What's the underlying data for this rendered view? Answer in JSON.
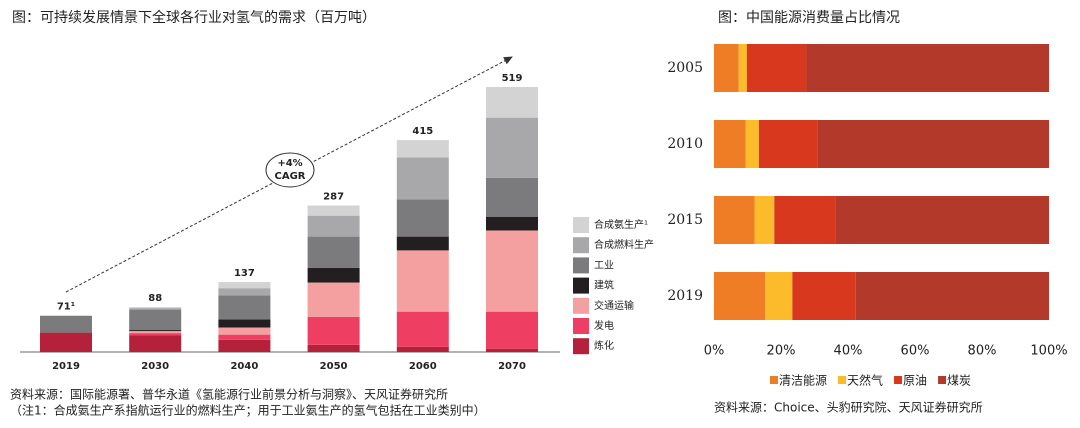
{
  "chart_data": [
    {
      "type": "bar",
      "stacked": true,
      "orientation": "vertical",
      "title": "图：可持续发展情景下全球各行业对氢气的需求（百万吨）",
      "categories": [
        "2019",
        "2030",
        "2040",
        "2050",
        "2060",
        "2070"
      ],
      "series": [
        {
          "name": "炼化",
          "color": "#b5213a",
          "values": [
            38,
            33,
            24,
            14,
            10,
            6
          ]
        },
        {
          "name": "发电",
          "color": "#ee3f63",
          "values": [
            0,
            4,
            10,
            55,
            69,
            73
          ]
        },
        {
          "name": "交通运输",
          "color": "#f4a0a0",
          "values": [
            0,
            4,
            14,
            67,
            120,
            159
          ]
        },
        {
          "name": "建筑",
          "color": "#231f20",
          "values": [
            0,
            2,
            16,
            29,
            27,
            27
          ]
        },
        {
          "name": "工业",
          "color": "#7b7b7d",
          "values": [
            33,
            40,
            47,
            61,
            73,
            76
          ]
        },
        {
          "name": "合成燃料生产",
          "color": "#a8a8aa",
          "values": [
            0,
            3,
            14,
            41,
            82,
            118
          ]
        },
        {
          "name": "合成氨生产¹",
          "color": "#d3d3d4",
          "values": [
            0,
            2,
            12,
            20,
            34,
            60
          ]
        }
      ],
      "totals": [
        71,
        88,
        137,
        287,
        415,
        519
      ],
      "total_labels": [
        "71¹",
        "88",
        "137",
        "287",
        "415",
        "519"
      ],
      "annotation": [
        "+4%",
        "CAGR"
      ],
      "source": [
        "资料来源：国际能源署、普华永道《氢能源行业前景分析与洞察》、天风证券研究所",
        "（注1：合成氨生产系指航运行业的燃料生产；用于工业氨生产的氢气包括在工业类别中）"
      ]
    },
    {
      "type": "bar",
      "stacked": true,
      "orientation": "horizontal",
      "title": "图：中国能源消费量占比情况",
      "categories": [
        "2005",
        "2010",
        "2015",
        "2019"
      ],
      "series": [
        {
          "name": "清洁能源",
          "color": "#ee7d26",
          "values": [
            7.4,
            9.4,
            12.1,
            15.3
          ]
        },
        {
          "name": "天然气",
          "color": "#fbbb2a",
          "values": [
            2.4,
            4.0,
            5.9,
            8.1
          ]
        },
        {
          "name": "原油",
          "color": "#d7381e",
          "values": [
            17.8,
            17.4,
            18.3,
            18.9
          ]
        },
        {
          "name": "煤炭",
          "color": "#b33a2b",
          "values": [
            72.4,
            69.2,
            63.7,
            57.7
          ]
        }
      ],
      "xlim": [
        0,
        100
      ],
      "xticks": [
        {
          "value": 0,
          "label": "0%"
        },
        {
          "value": 20,
          "label": "20%"
        },
        {
          "value": 40,
          "label": "40%"
        },
        {
          "value": 60,
          "label": "60%"
        },
        {
          "value": 80,
          "label": "80%"
        },
        {
          "value": 100,
          "label": "100%"
        }
      ],
      "source": [
        "资料来源：Choice、头豹研究院、天风证券研究所"
      ]
    }
  ]
}
